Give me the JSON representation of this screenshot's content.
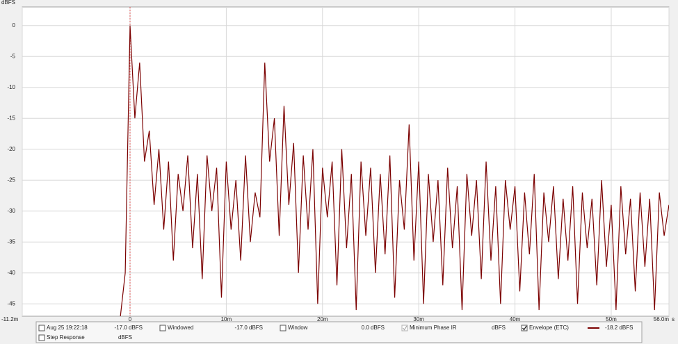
{
  "chart_data": {
    "type": "line",
    "y_label": "dBFS",
    "x_label": "s",
    "x": [
      -1.0,
      -0.5,
      0,
      0.5,
      1.0,
      1.5,
      2.0,
      2.5,
      3.0,
      3.5,
      4.0,
      4.5,
      5.0,
      5.5,
      6.0,
      6.5,
      7.0,
      7.5,
      8.0,
      8.5,
      9.0,
      9.5,
      10.0,
      10.5,
      11.0,
      11.5,
      12.0,
      12.5,
      13.0,
      13.5,
      14.0,
      14.5,
      15.0,
      15.5,
      16.0,
      16.5,
      17.0,
      17.5,
      18.0,
      18.5,
      19.0,
      19.5,
      20.0,
      20.5,
      21.0,
      21.5,
      22.0,
      22.5,
      23.0,
      23.5,
      24.0,
      24.5,
      25.0,
      25.5,
      26.0,
      26.5,
      27.0,
      27.5,
      28.0,
      28.5,
      29.0,
      29.5,
      30.0,
      30.5,
      31.0,
      31.5,
      32.0,
      32.5,
      33.0,
      33.5,
      34.0,
      34.5,
      35.0,
      35.5,
      36.0,
      36.5,
      37.0,
      37.5,
      38.0,
      38.5,
      39.0,
      39.5,
      40.0,
      40.5,
      41.0,
      41.5,
      42.0,
      42.5,
      43.0,
      43.5,
      44.0,
      44.5,
      45.0,
      45.5,
      46.0,
      46.5,
      47.0,
      47.5,
      48.0,
      48.5,
      49.0,
      49.5,
      50.0,
      50.5,
      51.0,
      51.5,
      52.0,
      52.5,
      53.0,
      53.5,
      54.0,
      54.5,
      55.0,
      55.5,
      56.0
    ],
    "series": [
      {
        "name": "Envelope (ETC)",
        "color": "#7b0000",
        "values": [
          -47,
          -40,
          0,
          -15,
          -6,
          -22,
          -17,
          -29,
          -20,
          -33,
          -22,
          -38,
          -24,
          -30,
          -21,
          -36,
          -24,
          -41,
          -21,
          -30,
          -23,
          -44,
          -22,
          -33,
          -25,
          -38,
          -21,
          -35,
          -27,
          -31,
          -6,
          -22,
          -15,
          -34,
          -13,
          -29,
          -19,
          -40,
          -21,
          -33,
          -20,
          -45,
          -23,
          -31,
          -22,
          -42,
          -20,
          -36,
          -24,
          -46,
          -22,
          -34,
          -23,
          -40,
          -24,
          -37,
          -21,
          -44,
          -25,
          -33,
          -16,
          -38,
          -22,
          -45,
          -24,
          -35,
          -25,
          -42,
          -23,
          -36,
          -26,
          -46,
          -24,
          -34,
          -25,
          -41,
          -22,
          -38,
          -26,
          -45,
          -25,
          -33,
          -26,
          -43,
          -27,
          -37,
          -24,
          -46,
          -27,
          -35,
          -26,
          -41,
          -28,
          -38,
          -26,
          -45,
          -27,
          -36,
          -28,
          -42,
          -25,
          -39,
          -29,
          -46,
          -26,
          -37,
          -28,
          -43,
          -27,
          -39,
          -28,
          -46,
          -27,
          -34,
          -29
        ]
      }
    ],
    "xlim": [
      -11.2,
      56.0
    ],
    "xticks": [
      {
        "value": -11.2,
        "label": "-11.2m"
      },
      0,
      {
        "value": 10,
        "label": "10m"
      },
      {
        "value": 20,
        "label": "20m"
      },
      {
        "value": 30,
        "label": "30m"
      },
      {
        "value": 40,
        "label": "40m"
      },
      {
        "value": 50,
        "label": "50m"
      },
      {
        "value": 56.0,
        "label": "56.0m"
      }
    ],
    "ylim": [
      -47,
      3
    ],
    "yticks": [
      0,
      -5,
      -10,
      -15,
      -20,
      -25,
      -30,
      -35,
      -40,
      -45
    ],
    "grid": true,
    "cursor_x": 0,
    "cursor_color": "#e05050"
  },
  "legend_panel": {
    "items": [
      {
        "label": "Aug 25 19:22:18",
        "reading": "-17.0 dBFS",
        "checked": false,
        "color": "#8b0000",
        "reading_color": "#c00000"
      },
      {
        "label": "Windowed",
        "reading": "-17.0 dBFS",
        "checked": false,
        "color": "#d02020",
        "reading_color": "#d02020"
      },
      {
        "label": "Window",
        "reading": "0.0 dBFS",
        "checked": false,
        "color": "#2030c0",
        "reading_color": "#2030c0"
      },
      {
        "label": "Minimum Phase IR",
        "reading": "dBFS",
        "checked": true,
        "color": "#a0a0a0",
        "reading_color": "#a0a0a0"
      },
      {
        "label": "Envelope (ETC)",
        "reading": "-18.2 dBFS",
        "checked": true,
        "color": "#000000",
        "reading_color": "#8b0000",
        "swatch": "#7b0000"
      },
      {
        "label": "Step Response",
        "reading": "dBFS",
        "checked": false,
        "color": "#000000",
        "reading_color": "#8b0000"
      }
    ]
  }
}
